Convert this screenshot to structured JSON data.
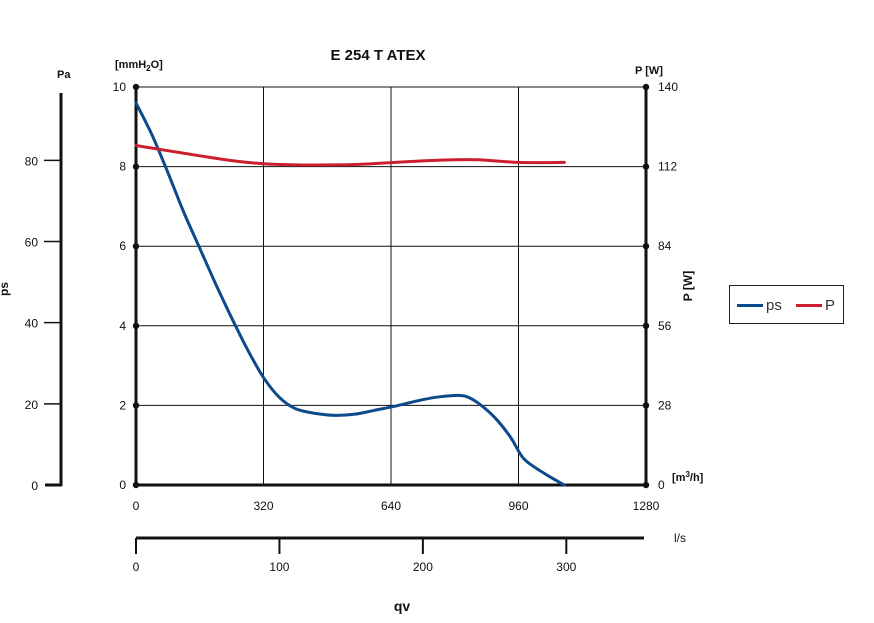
{
  "chart_data": {
    "type": "line",
    "title": "E 254 T ATEX",
    "x_primary": {
      "ticks": [
        "0",
        "320",
        "640",
        "960",
        "1280"
      ],
      "unit": "[m3/h]",
      "range": [
        0,
        1280
      ]
    },
    "x_secondary": {
      "ticks": [
        "0",
        "100",
        "200",
        "300"
      ],
      "unit": "l/s"
    },
    "xlabel": "qv",
    "y_left_mm": {
      "unit_text": "[mmH2O]",
      "ticks": [
        "0",
        "2",
        "4",
        "6",
        "8",
        "10"
      ],
      "range": [
        0,
        10
      ]
    },
    "y_left_pa": {
      "unit": "Pa",
      "ticks": [
        "0",
        "20",
        "40",
        "60",
        "80"
      ],
      "label": "ps"
    },
    "y_right": {
      "unit": "P [W]",
      "label": "P [W]",
      "ticks": [
        "0",
        "28",
        "56",
        "84",
        "112",
        "140"
      ],
      "range": [
        0,
        140
      ]
    },
    "series": [
      {
        "name": "ps",
        "axis": "mmH2O",
        "color": "#0d4a8c",
        "x": [
          0,
          40,
          80,
          120,
          160,
          200,
          240,
          280,
          320,
          360,
          400,
          450,
          500,
          550,
          600,
          650,
          700,
          750,
          800,
          830,
          860,
          900,
          940,
          970,
          1000,
          1040,
          1075
        ],
        "y": [
          9.6,
          8.8,
          7.85,
          6.85,
          5.95,
          5.05,
          4.2,
          3.4,
          2.7,
          2.2,
          1.92,
          1.8,
          1.75,
          1.78,
          1.88,
          1.98,
          2.1,
          2.2,
          2.25,
          2.22,
          2.05,
          1.7,
          1.2,
          0.7,
          0.45,
          0.2,
          0.0
        ]
      },
      {
        "name": "P",
        "axis": "W",
        "color": "#cc1f2d",
        "x": [
          0,
          80,
          160,
          240,
          320,
          400,
          480,
          560,
          640,
          720,
          800,
          860,
          900,
          960,
          1040,
          1075
        ],
        "y": [
          119.4,
          117.6,
          115.8,
          114.1,
          113.0,
          112.6,
          112.6,
          112.8,
          113.4,
          114.0,
          114.4,
          114.4,
          114.0,
          113.5,
          113.4,
          113.5
        ]
      }
    ],
    "legend": {
      "position": "right",
      "entries": [
        "ps",
        "P"
      ]
    },
    "grid": true
  }
}
